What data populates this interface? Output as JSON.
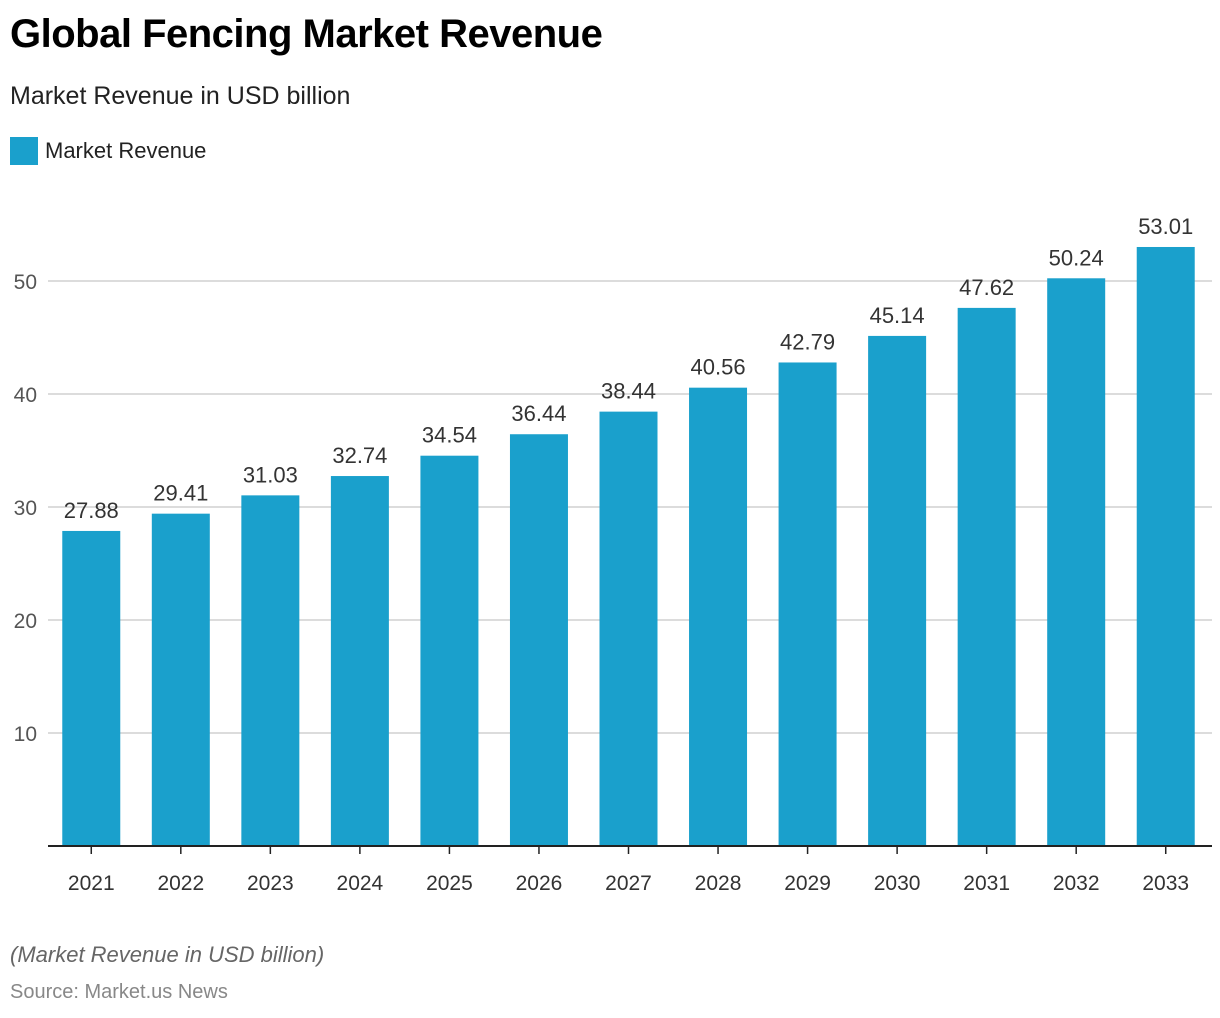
{
  "title": "Global Fencing Market Revenue",
  "subtitle": "Market Revenue in USD billion",
  "legend_label": "Market Revenue",
  "note": "(Market Revenue in USD billion)",
  "source": "Source: Market.us News",
  "colors": {
    "bar": "#1aa0cc",
    "grid": "#d0d0d0",
    "axis": "#222222"
  },
  "chart_data": {
    "type": "bar",
    "title": "Global Fencing Market Revenue",
    "xlabel": "",
    "ylabel": "Market Revenue in USD billion",
    "categories": [
      "2021",
      "2022",
      "2023",
      "2024",
      "2025",
      "2026",
      "2027",
      "2028",
      "2029",
      "2030",
      "2031",
      "2032",
      "2033"
    ],
    "series": [
      {
        "name": "Market Revenue",
        "values": [
          27.88,
          29.41,
          31.03,
          32.74,
          34.54,
          36.44,
          38.44,
          40.56,
          42.79,
          45.14,
          47.62,
          50.24,
          53.01
        ]
      }
    ],
    "yticks": [
      10,
      20,
      30,
      40,
      50
    ],
    "ylim": [
      0,
      54
    ],
    "grid": true,
    "legend_position": "top-left"
  }
}
